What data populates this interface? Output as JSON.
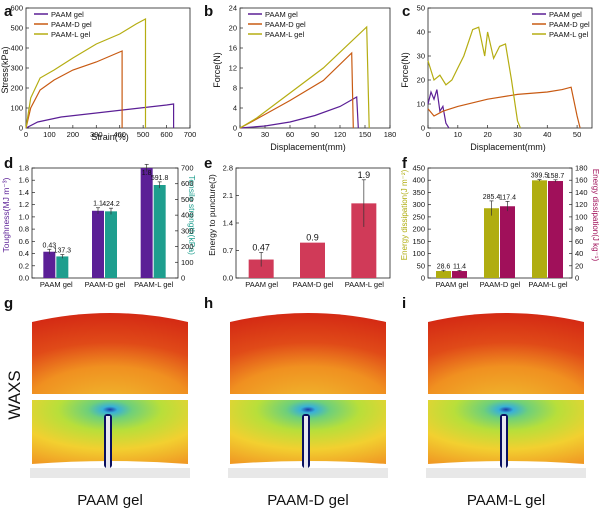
{
  "colors": {
    "paam": "#5b1f96",
    "paamD": "#c85a12",
    "paamL": "#b5ad12",
    "teal": "#1e9e8e",
    "magentaBar": "#d03a58",
    "olive": "#b0ad10",
    "crimson": "#a0105a"
  },
  "panels": {
    "a": {
      "letter": "a",
      "legend": [
        "PAAM gel",
        "PAAM-D gel",
        "PAAM-L gel"
      ],
      "xlabel": "Strain(%)",
      "ylabel": "Stress(kPa)",
      "xticks": [
        "0",
        "100",
        "200",
        "300",
        "400",
        "500",
        "600",
        "700"
      ],
      "yticks": [
        "0",
        "100",
        "200",
        "300",
        "400",
        "500",
        "600"
      ]
    },
    "b": {
      "letter": "b",
      "legend": [
        "PAAM gel",
        "PAAM-D gel",
        "PAAM-L gel"
      ],
      "xlabel": "Displacement(mm)",
      "ylabel": "Force(N)",
      "xticks": [
        "0",
        "30",
        "60",
        "90",
        "120",
        "150",
        "180"
      ],
      "yticks": [
        "0",
        "4",
        "8",
        "12",
        "16",
        "20",
        "24"
      ]
    },
    "c": {
      "letter": "c",
      "legend": [
        "PAAM gel",
        "PAAM-D gel",
        "PAAM-L gel"
      ],
      "xlabel": "Displacement(mm)",
      "ylabel": "Force(N)",
      "xticks": [
        "0",
        "10",
        "20",
        "30",
        "40",
        "50"
      ],
      "yticks": [
        "0",
        "10",
        "20",
        "30",
        "40",
        "50"
      ]
    },
    "d": {
      "letter": "d",
      "ylabel": "Toughness(MJ m⁻³)",
      "y2label": "Tensile strength(kPa)",
      "yticks": [
        "0.0",
        "0.2",
        "0.4",
        "0.6",
        "0.8",
        "1.0",
        "1.2",
        "1.4",
        "1.6",
        "1.8"
      ],
      "y2ticks": [
        "0",
        "100",
        "200",
        "300",
        "400",
        "500",
        "600",
        "700"
      ]
    },
    "e": {
      "letter": "e",
      "ylabel": "Energy to puncture(J)",
      "yticks": [
        "0.0",
        "0.7",
        "1.4",
        "2.1",
        "2.8"
      ]
    },
    "f": {
      "letter": "f",
      "ylabel": "Energy dissipation(J m⁻²)",
      "y2label": "Energy dissipation(J kg⁻¹)",
      "yticks": [
        "0",
        "50",
        "100",
        "150",
        "200",
        "250",
        "300",
        "350",
        "400",
        "450"
      ],
      "y2ticks": [
        "0",
        "20",
        "40",
        "60",
        "80",
        "100",
        "120",
        "140",
        "160",
        "180"
      ]
    },
    "g": {
      "letter": "g"
    },
    "h": {
      "letter": "h"
    },
    "i": {
      "letter": "i"
    }
  },
  "waxs": {
    "side_label": "WAXS",
    "captions": [
      "PAAM gel",
      "PAAM-D gel",
      "PAAM-L gel"
    ]
  },
  "chart_data": [
    {
      "type": "line",
      "panel": "a",
      "xlabel": "Strain(%)",
      "ylabel": "Stress(kPa)",
      "xlim": [
        0,
        700
      ],
      "ylim": [
        0,
        600
      ],
      "series": [
        {
          "name": "PAAM gel",
          "x": [
            0,
            50,
            150,
            300,
            450,
            600,
            630,
            630
          ],
          "y": [
            0,
            30,
            55,
            75,
            95,
            115,
            120,
            0
          ]
        },
        {
          "name": "PAAM-D gel",
          "x": [
            0,
            20,
            60,
            120,
            200,
            300,
            380,
            410,
            410
          ],
          "y": [
            0,
            100,
            190,
            240,
            290,
            330,
            370,
            385,
            0
          ]
        },
        {
          "name": "PAAM-L gel",
          "x": [
            0,
            20,
            60,
            120,
            200,
            300,
            400,
            470,
            510,
            510
          ],
          "y": [
            0,
            150,
            250,
            290,
            350,
            420,
            470,
            520,
            545,
            0
          ]
        }
      ]
    },
    {
      "type": "line",
      "panel": "b",
      "xlabel": "Displacement(mm)",
      "ylabel": "Force(N)",
      "xlim": [
        0,
        180
      ],
      "ylim": [
        0,
        24
      ],
      "series": [
        {
          "name": "PAAM gel",
          "x": [
            0,
            30,
            60,
            90,
            120,
            140,
            142
          ],
          "y": [
            0,
            0.4,
            1.2,
            2.5,
            4.3,
            6.2,
            0
          ]
        },
        {
          "name": "PAAM-D gel",
          "x": [
            0,
            20,
            60,
            100,
            134,
            136
          ],
          "y": [
            0,
            1.8,
            5.5,
            9.5,
            15,
            0
          ]
        },
        {
          "name": "PAAM-L gel",
          "x": [
            0,
            20,
            60,
            100,
            152,
            155
          ],
          "y": [
            0,
            2,
            7,
            12,
            20.2,
            0
          ]
        }
      ]
    },
    {
      "type": "line",
      "panel": "c",
      "xlabel": "Displacement(mm)",
      "ylabel": "Force(N)",
      "xlim": [
        0,
        55
      ],
      "ylim": [
        0,
        50
      ],
      "series": [
        {
          "name": "PAAM gel",
          "x": [
            0,
            1,
            2,
            3,
            4,
            5,
            6,
            7
          ],
          "y": [
            10,
            15,
            12,
            16,
            7,
            9,
            2,
            0
          ]
        },
        {
          "name": "PAAM-D gel",
          "x": [
            0,
            2,
            5,
            10,
            20,
            30,
            40,
            45,
            48,
            50,
            51
          ],
          "y": [
            8,
            5,
            7,
            9,
            12,
            14,
            15,
            16,
            17,
            5,
            0
          ]
        },
        {
          "name": "PAAM-L gel",
          "x": [
            0,
            2,
            4,
            6,
            8,
            10,
            12,
            15,
            17,
            19,
            20,
            22,
            24,
            26,
            28,
            30,
            31
          ],
          "y": [
            28,
            20,
            22,
            18,
            20,
            25,
            30,
            41,
            42,
            30,
            40,
            29,
            34,
            35,
            20,
            3,
            0
          ]
        }
      ]
    },
    {
      "type": "bar",
      "panel": "d",
      "categories": [
        "PAAM gel",
        "PAAM-D gel",
        "PAAM-L gel"
      ],
      "ylabel": "Toughness(MJ m⁻³)",
      "y2label": "Tensile strength(kPa)",
      "ylim": [
        0,
        1.8
      ],
      "y2lim": [
        0,
        700
      ],
      "series": [
        {
          "name": "Toughness",
          "axis": "left",
          "values": [
            0.43,
            1.1,
            1.8
          ],
          "labels": [
            "0.43",
            "1.1",
            "1.8"
          ],
          "err": [
            0.04,
            0.05,
            0.06
          ]
        },
        {
          "name": "Tensile strength",
          "axis": "right",
          "values": [
            137.3,
            424.2,
            591.8
          ],
          "labels": [
            "137.3",
            "424.2",
            "591.8"
          ],
          "err": [
            12,
            20,
            20
          ]
        }
      ]
    },
    {
      "type": "bar",
      "panel": "e",
      "categories": [
        "PAAM gel",
        "PAAM-D gel",
        "PAAM-L gel"
      ],
      "ylabel": "Energy to puncture(J)",
      "ylim": [
        0,
        2.8
      ],
      "series": [
        {
          "name": "Energy to puncture",
          "values": [
            0.47,
            0.9,
            1.9
          ],
          "labels": [
            "0.47",
            "0.9",
            "1.9"
          ],
          "err": [
            0.18,
            0,
            0.6
          ]
        }
      ]
    },
    {
      "type": "bar",
      "panel": "f",
      "categories": [
        "PAAM gel",
        "PAAM-D gel",
        "PAAM-L gel"
      ],
      "ylabel": "Energy dissipation(J m⁻²)",
      "y2label": "Energy dissipation(J kg⁻¹)",
      "ylim": [
        0,
        450
      ],
      "y2lim": [
        0,
        180
      ],
      "series": [
        {
          "name": "Energy dissipation (J m-2)",
          "axis": "left",
          "values": [
            28.6,
            285.4,
            399.5
          ],
          "labels": [
            "28.6",
            "285.4",
            "399.5"
          ],
          "err": [
            3,
            30,
            3
          ]
        },
        {
          "name": "Energy dissipation (J kg-1)",
          "axis": "right",
          "values": [
            11.4,
            117.4,
            158.7
          ],
          "labels": [
            "11.4",
            "117.4",
            "158.7"
          ],
          "err": [
            1,
            8,
            2
          ]
        }
      ]
    }
  ]
}
